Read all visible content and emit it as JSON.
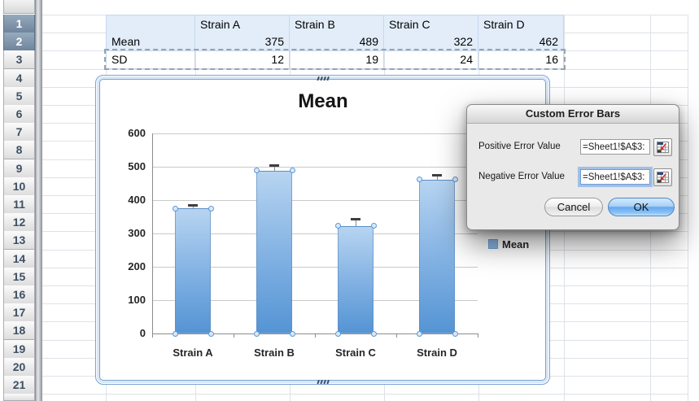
{
  "sheet": {
    "row_numbers": [
      "1",
      "2",
      "3",
      "4",
      "5",
      "6",
      "7",
      "8",
      "9",
      "10",
      "11",
      "12",
      "13",
      "14",
      "15",
      "16",
      "17",
      "18",
      "19",
      "20",
      "21"
    ],
    "selected_row_headers": [
      "1",
      "2"
    ],
    "table": {
      "header": [
        "",
        "Strain A",
        "Strain B",
        "Strain C",
        "Strain D"
      ],
      "rows": [
        {
          "label": "Mean",
          "values": [
            "375",
            "489",
            "322",
            "462"
          ],
          "highlighted": true,
          "selected": false
        },
        {
          "label": "SD",
          "values": [
            "12",
            "19",
            "24",
            "16"
          ],
          "highlighted": false,
          "selected": true
        }
      ]
    }
  },
  "chart_data": {
    "type": "bar",
    "title": "Mean",
    "categories": [
      "Strain A",
      "Strain B",
      "Strain C",
      "Strain D"
    ],
    "series": [
      {
        "name": "Mean",
        "values": [
          375,
          489,
          322,
          462
        ]
      }
    ],
    "error_bars": {
      "positive": [
        12,
        19,
        24,
        16
      ],
      "negative": [
        12,
        19,
        24,
        16
      ]
    },
    "ylim": [
      0,
      600
    ],
    "yticks": [
      0,
      100,
      200,
      300,
      400,
      500,
      600
    ],
    "xlabel": "",
    "ylabel": "",
    "legend_entries": [
      "Mean"
    ],
    "legend_position": "right",
    "grid": true
  },
  "dialog": {
    "title": "Custom Error Bars",
    "fields": [
      {
        "label": "Positive Error Value",
        "value": "=Sheet1!$A$3:",
        "focused": false
      },
      {
        "label": "Negative Error Value",
        "value": "=Sheet1!$A$3:",
        "focused": true
      }
    ],
    "cancel_label": "Cancel",
    "ok_label": "OK"
  },
  "colors": {
    "bar_top": "#b7d4f1",
    "bar_bottom": "#5594d4",
    "legend_swatch": "#8ab6e4",
    "table_highlight": "#e2edf9",
    "selected_row_header": "#70859c",
    "chart_frame": "#7aa2d2",
    "ok_button": "#64a7ef",
    "focus_ring": "#7daae1"
  }
}
